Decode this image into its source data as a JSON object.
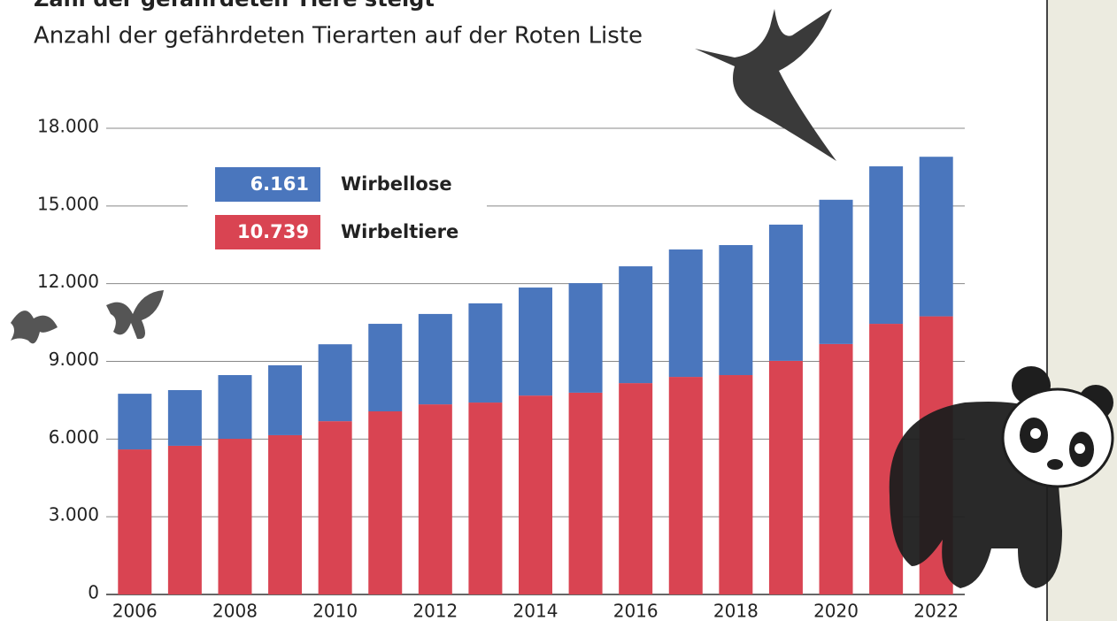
{
  "chart_data": {
    "type": "stacked-bar",
    "title": "Zahl der gefährdeten Tiere steigt",
    "subtitle": "Anzahl der gefährdeten Tierarten auf der Roten Liste",
    "categories": [
      "2006",
      null,
      "2008",
      null,
      "2010",
      null,
      "2012",
      null,
      "2014",
      null,
      "2016",
      null,
      "2018",
      null,
      "2020",
      null,
      "2022"
    ],
    "series": [
      {
        "name": "Wirbeltiere",
        "color": "#d94452",
        "legend_value": "10.739",
        "values": [
          5600,
          5740,
          6010,
          6150,
          6690,
          7070,
          7340,
          7410,
          7680,
          7790,
          8160,
          8400,
          8470,
          9020,
          9670,
          10450,
          10739
        ]
      },
      {
        "name": "Wirbellose",
        "color": "#4a76bd",
        "legend_value": "6.161",
        "values": [
          2150,
          2150,
          2460,
          2700,
          2970,
          3380,
          3490,
          3830,
          4170,
          4230,
          4510,
          4920,
          5020,
          5260,
          5570,
          6080,
          6161
        ]
      }
    ],
    "ylim": [
      0,
      18000
    ],
    "yticks": [
      0,
      {
        "value": 3000,
        "label": "3.000"
      },
      {
        "value": 6000,
        "label": "6.000"
      },
      {
        "value": 9000,
        "label": "9.000"
      },
      {
        "value": 12000,
        "label": "12.000"
      },
      {
        "value": 15000,
        "label": "15.000"
      },
      {
        "value": 18000,
        "label": "18.000"
      }
    ],
    "grid": true
  }
}
